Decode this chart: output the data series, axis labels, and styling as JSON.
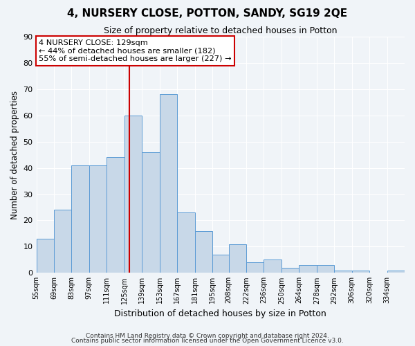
{
  "title": "4, NURSERY CLOSE, POTTON, SANDY, SG19 2QE",
  "subtitle": "Size of property relative to detached houses in Potton",
  "xlabel": "Distribution of detached houses by size in Potton",
  "ylabel": "Number of detached properties",
  "bar_color": "#c8d8e8",
  "bar_edge_color": "#5b9bd5",
  "background_color": "#f0f4f8",
  "grid_color": "#ffffff",
  "bin_labels": [
    "55sqm",
    "69sqm",
    "83sqm",
    "97sqm",
    "111sqm",
    "125sqm",
    "139sqm",
    "153sqm",
    "167sqm",
    "181sqm",
    "195sqm",
    "208sqm",
    "222sqm",
    "236sqm",
    "250sqm",
    "264sqm",
    "278sqm",
    "292sqm",
    "306sqm",
    "320sqm",
    "334sqm"
  ],
  "bin_edges": [
    55,
    69,
    83,
    97,
    111,
    125,
    139,
    153,
    167,
    181,
    195,
    208,
    222,
    236,
    250,
    264,
    278,
    292,
    306,
    320,
    334,
    348
  ],
  "counts": [
    13,
    24,
    41,
    41,
    44,
    60,
    46,
    68,
    23,
    16,
    7,
    11,
    4,
    5,
    2,
    3,
    3,
    1,
    1,
    0,
    1
  ],
  "property_size": 129,
  "vline_color": "#cc0000",
  "annotation_text": "4 NURSERY CLOSE: 129sqm\n← 44% of detached houses are smaller (182)\n55% of semi-detached houses are larger (227) →",
  "annotation_box_color": "#ffffff",
  "annotation_box_edge": "#cc0000",
  "ylim": [
    0,
    90
  ],
  "yticks": [
    0,
    10,
    20,
    30,
    40,
    50,
    60,
    70,
    80,
    90
  ],
  "footer1": "Contains HM Land Registry data © Crown copyright and database right 2024.",
  "footer2": "Contains public sector information licensed under the Open Government Licence v3.0."
}
